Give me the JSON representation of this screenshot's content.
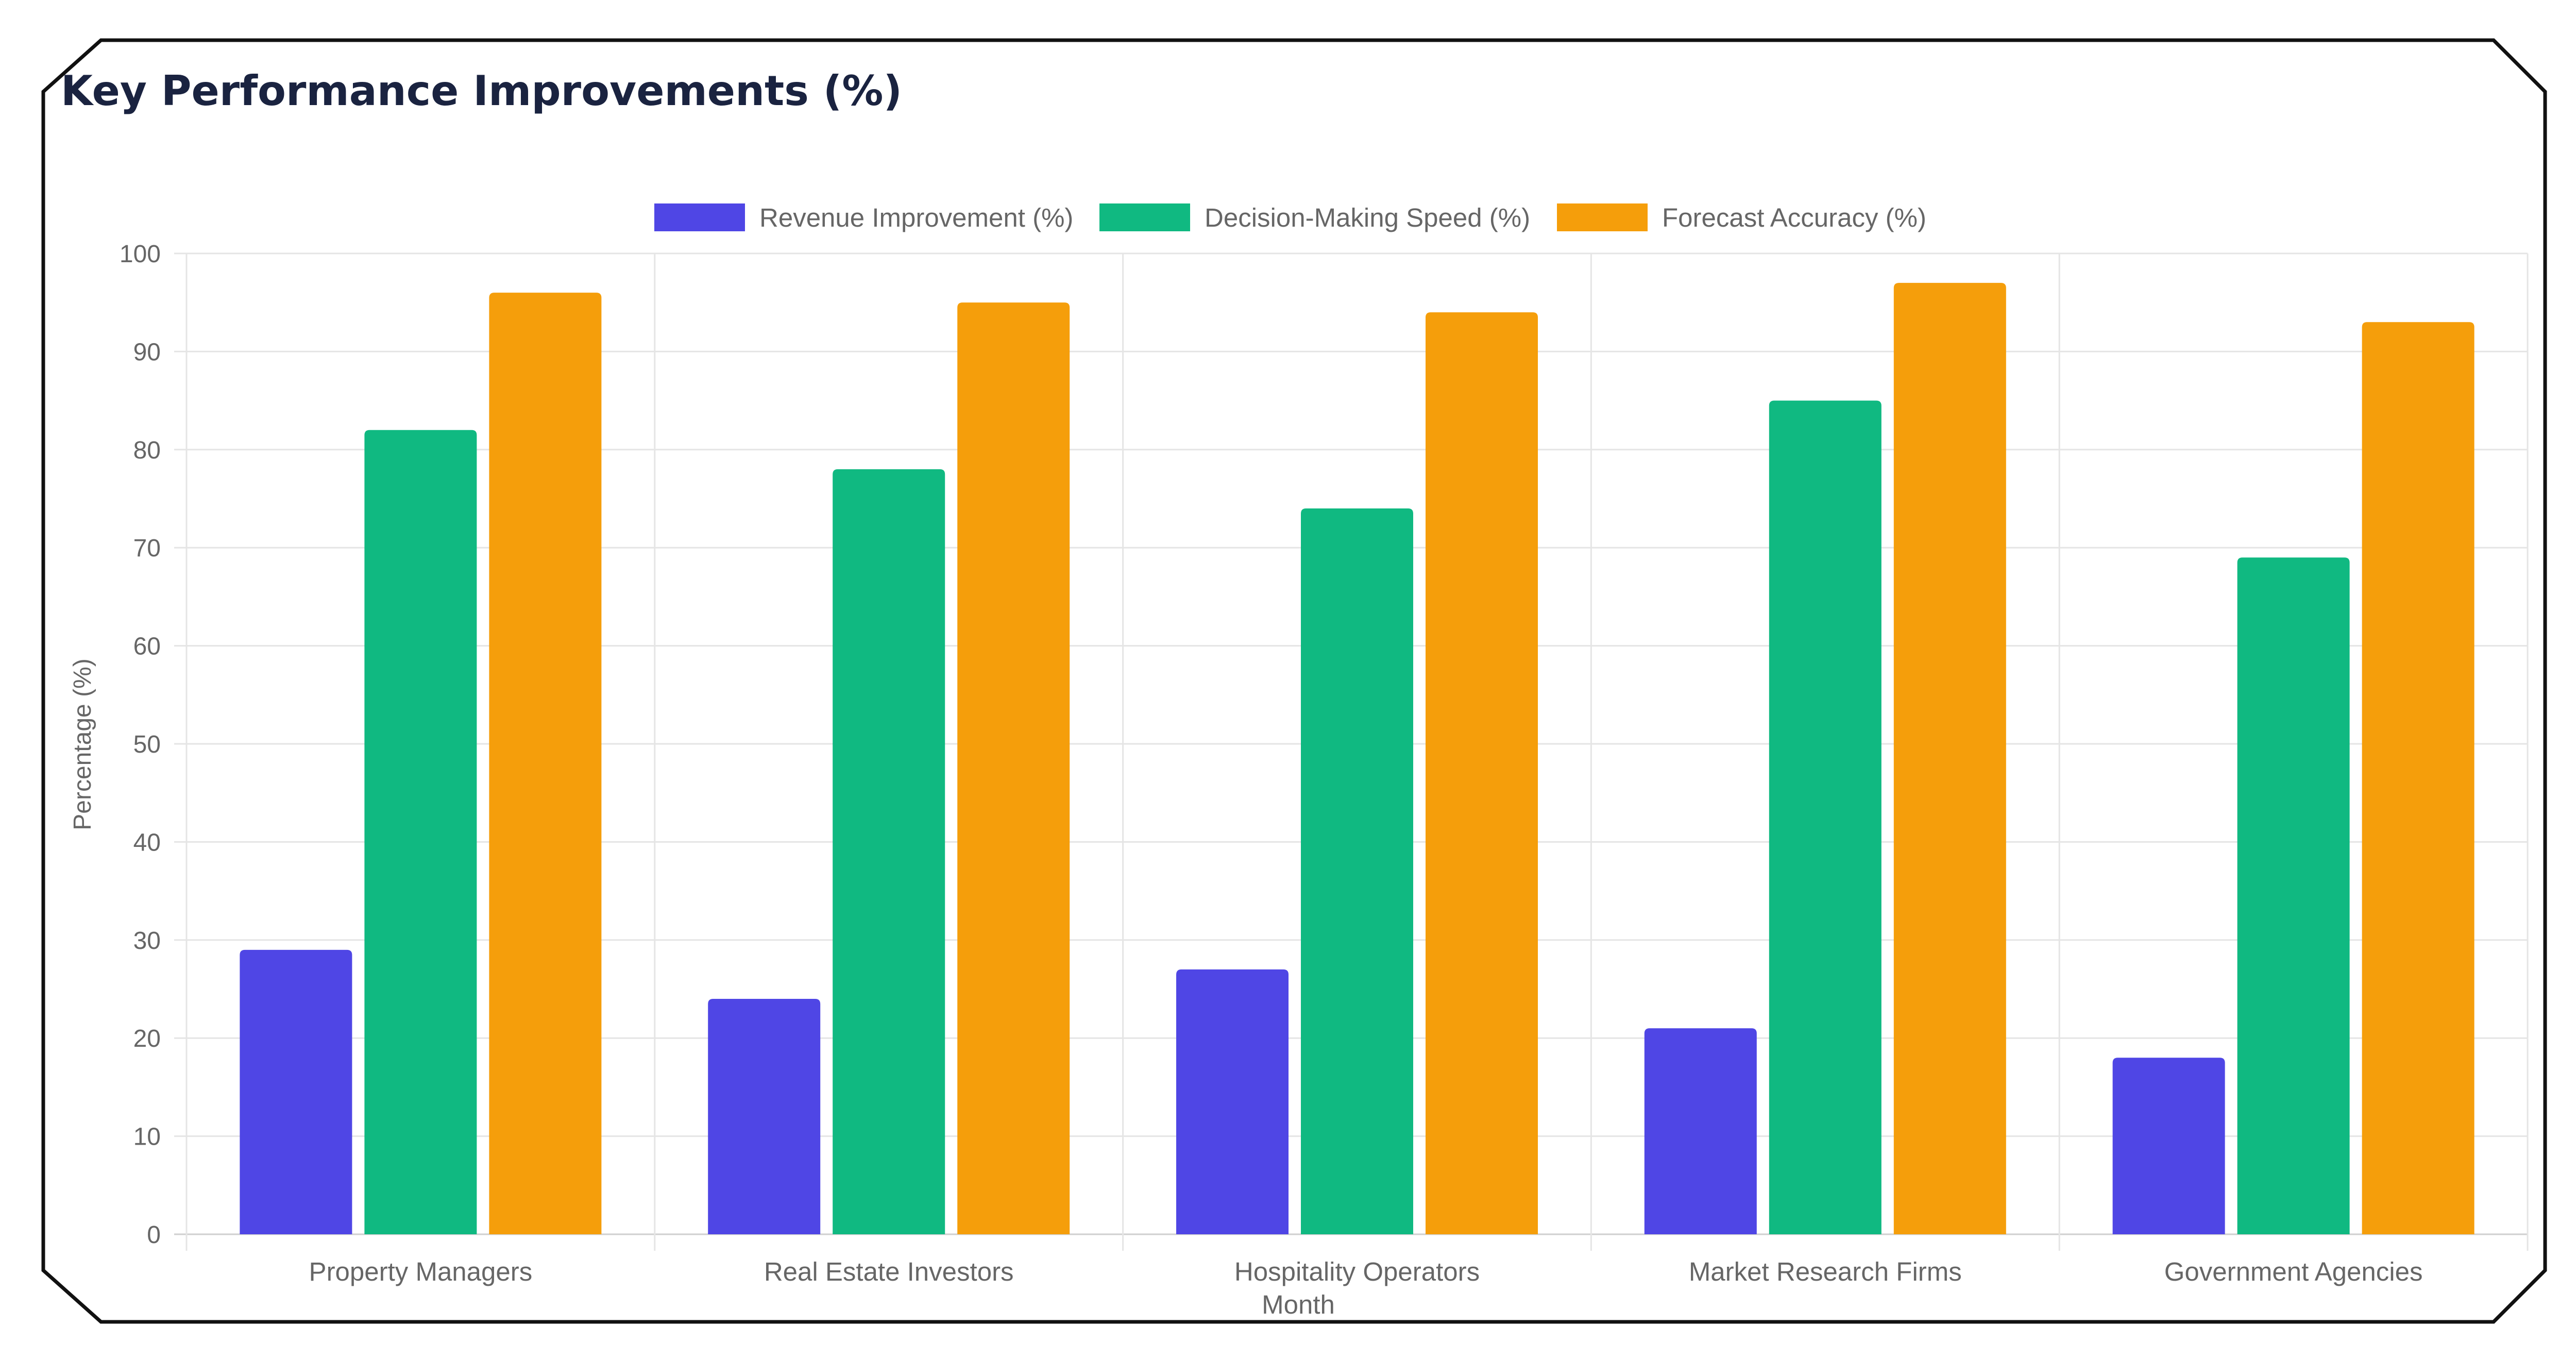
{
  "colors": {
    "frame": "#111111",
    "grid": "#e5e5e5",
    "text": "#666666",
    "title": "#1a2340"
  },
  "chart_data": {
    "type": "bar",
    "title": "Key Performance Improvements (%)",
    "xlabel": "Month",
    "ylabel": "Percentage (%)",
    "ylim": [
      0,
      100
    ],
    "yticks": [
      "0",
      "10",
      "20",
      "30",
      "40",
      "50",
      "60",
      "70",
      "80",
      "90",
      "100"
    ],
    "categories": [
      "Property Managers",
      "Real Estate Investors",
      "Hospitality Operators",
      "Market Research Firms",
      "Government Agencies"
    ],
    "series": [
      {
        "name": "Revenue Improvement (%)",
        "color": "#4f46e5",
        "values": [
          29,
          24,
          27,
          21,
          18
        ]
      },
      {
        "name": "Decision-Making Speed (%)",
        "color": "#10b981",
        "values": [
          82,
          78,
          74,
          85,
          69
        ]
      },
      {
        "name": "Forecast Accuracy (%)",
        "color": "#f59e0b",
        "values": [
          96,
          95,
          94,
          97,
          93
        ]
      }
    ],
    "grid": true,
    "legend": "top-center"
  }
}
